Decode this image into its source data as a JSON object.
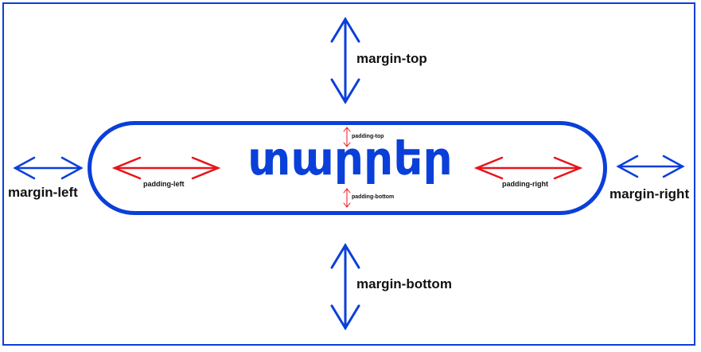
{
  "diagram": {
    "element_text": "տարրեր",
    "margin_labels": {
      "top": "margin-top",
      "bottom": "margin-bottom",
      "left": "margin-left",
      "right": "margin-right"
    },
    "padding_labels": {
      "top": "padding-top",
      "bottom": "padding-bottom",
      "left": "padding-left",
      "right": "padding-right"
    },
    "colors": {
      "margin": "#0a3fd9",
      "padding": "#e8141b",
      "element": "#0a3fd9",
      "text": "#111111"
    }
  }
}
